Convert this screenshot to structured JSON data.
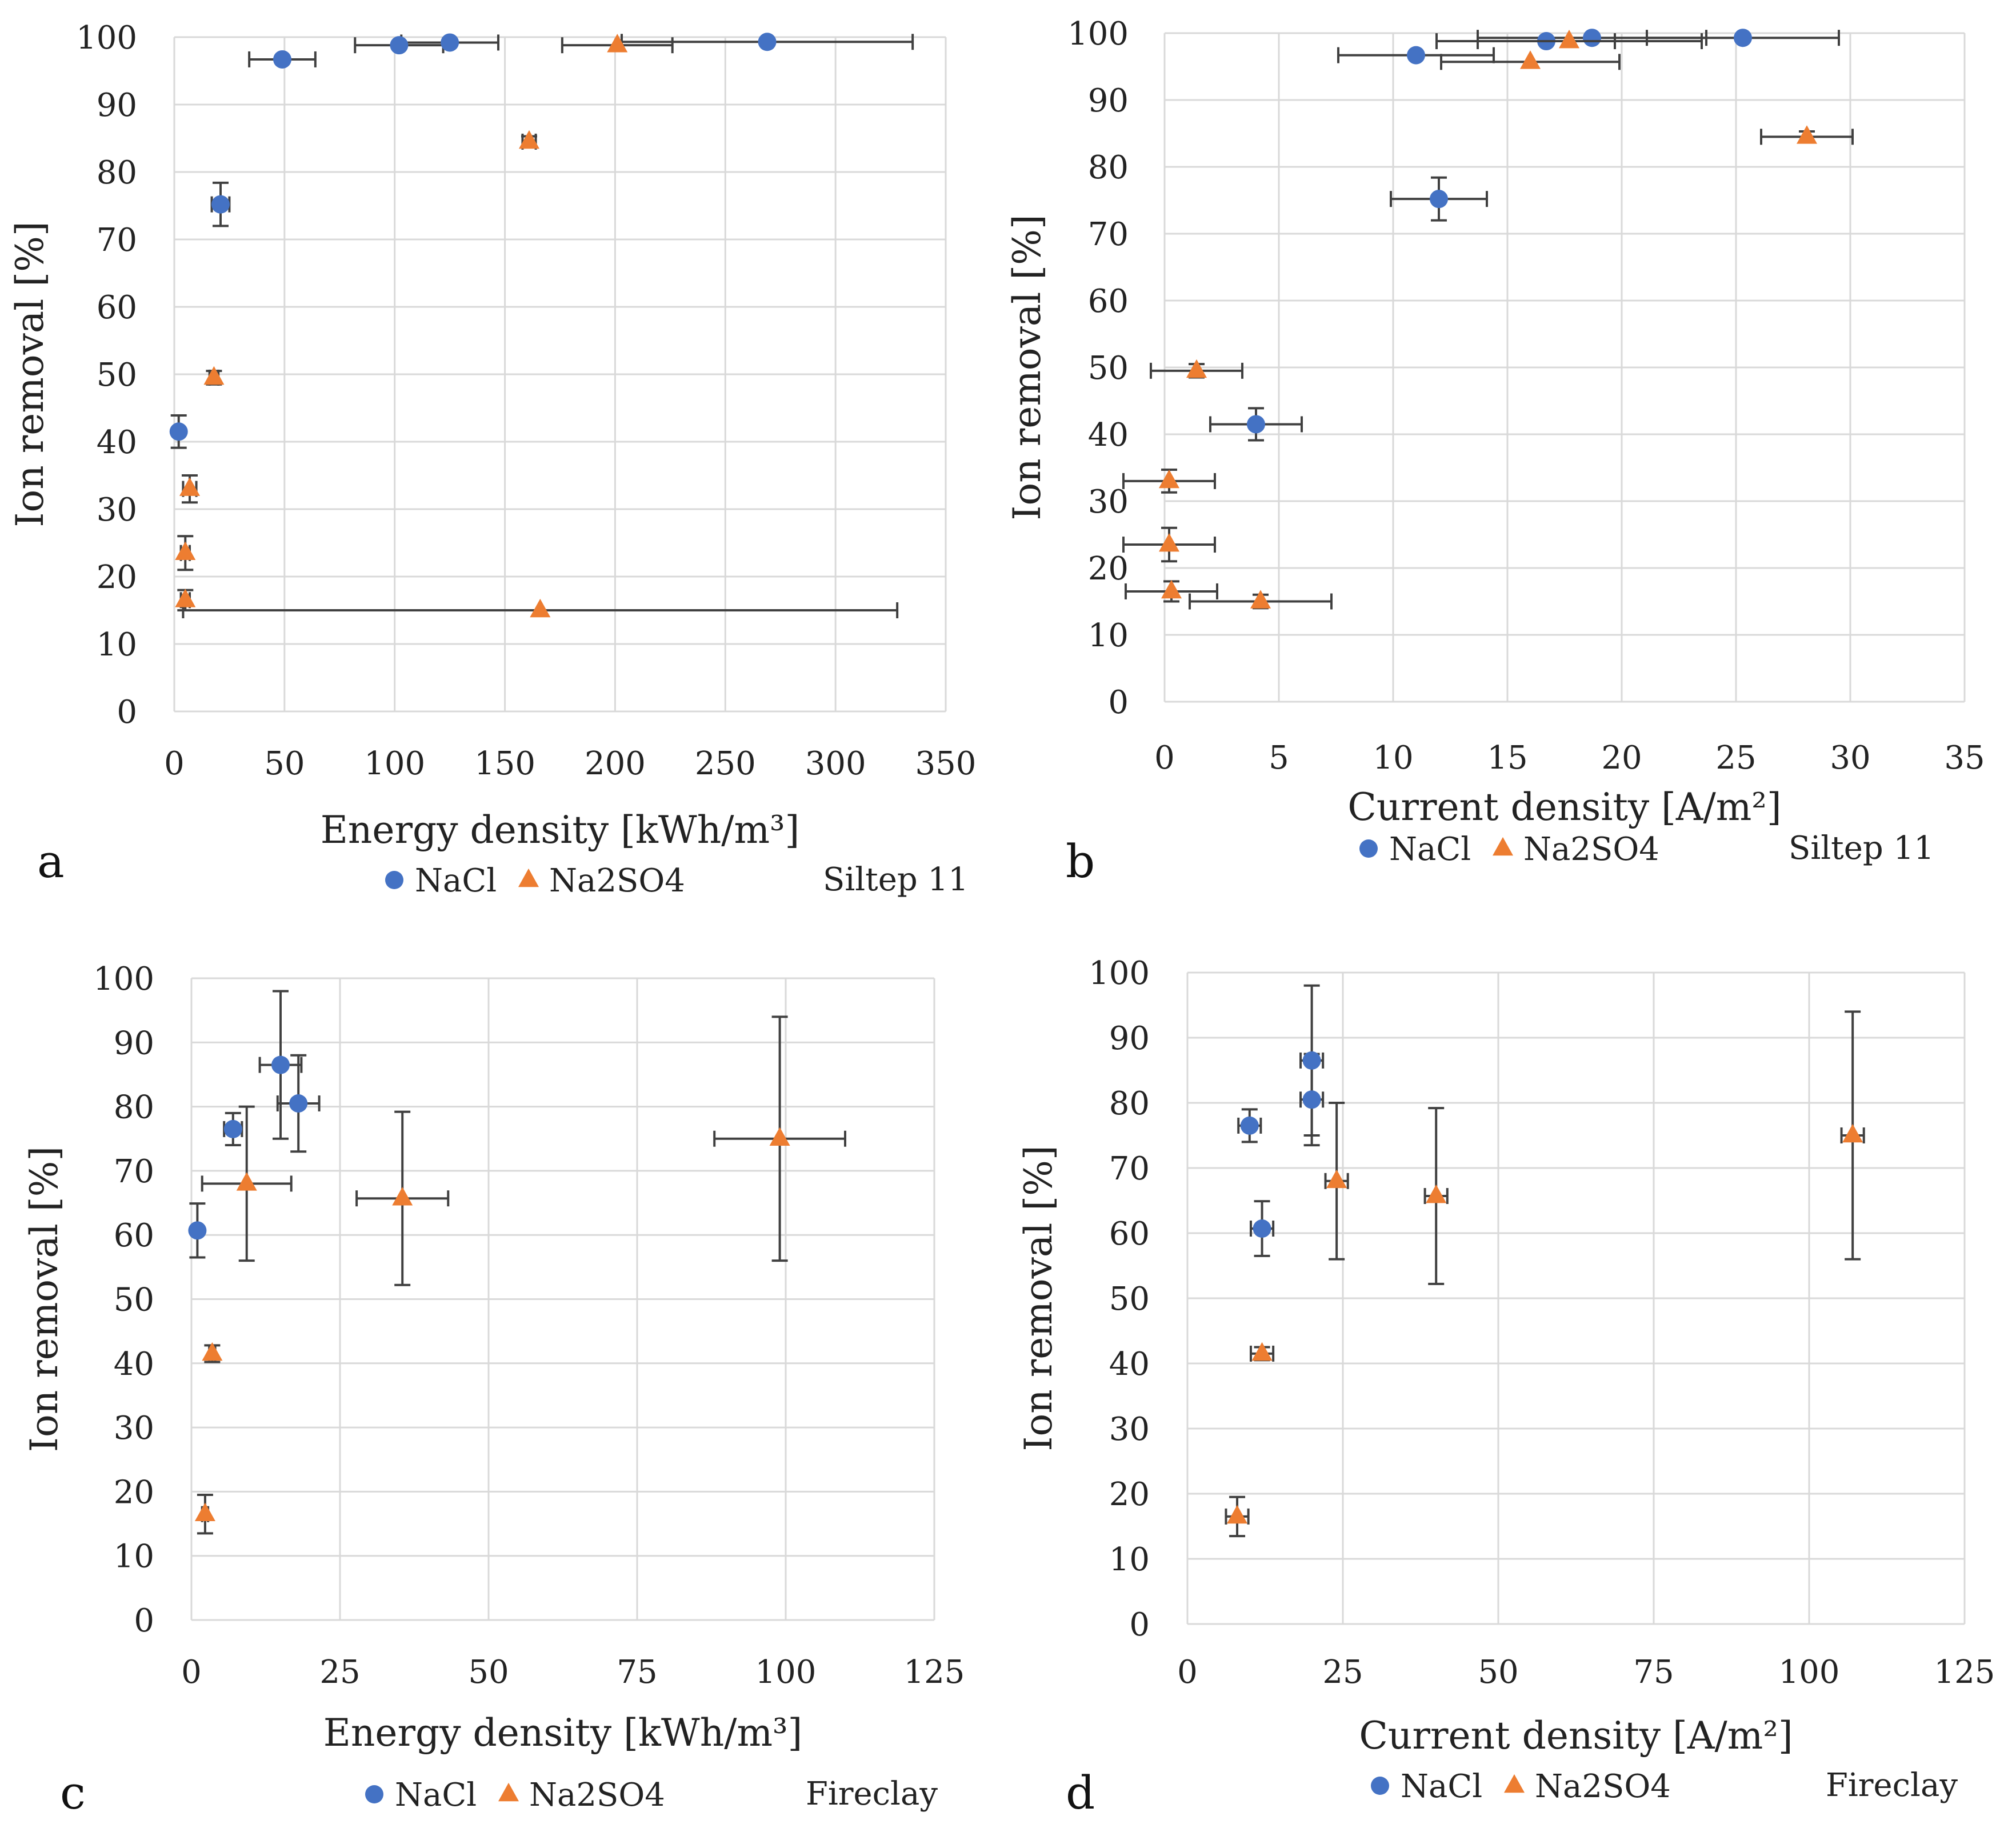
{
  "figure": {
    "marker_colors": {
      "nacl": "#4472C4",
      "na2so4": "#ED7D31"
    },
    "errorbar_color": "#404040",
    "grid_color": "#D9D9D9"
  },
  "chart_data": [
    {
      "panel": "a",
      "type": "scatter",
      "xlabel": "Energy density [kWh/m³]",
      "ylabel": "Ion removal [%]",
      "xlim": [
        0,
        350
      ],
      "xticks": [
        0,
        50,
        100,
        150,
        200,
        250,
        300,
        350
      ],
      "ylim": [
        0,
        100
      ],
      "yticks": [
        0,
        10,
        20,
        30,
        40,
        50,
        60,
        70,
        80,
        90,
        100
      ],
      "grid": true,
      "legend": [
        "NaCl",
        "Na2SO4"
      ],
      "note": "Siltep 11",
      "series": [
        {
          "name": "NaCl",
          "marker": "circle",
          "points": [
            {
              "x": 49,
              "y": 96.7,
              "xerr": 15,
              "yerr": 0
            },
            {
              "x": 102,
              "y": 98.8,
              "xerr": 20,
              "yerr": 0
            },
            {
              "x": 125,
              "y": 99.2,
              "xerr": 22,
              "yerr": 0
            },
            {
              "x": 269,
              "y": 99.3,
              "xerr": 66,
              "yerr": 0
            },
            {
              "x": 21,
              "y": 75.2,
              "xerr": 4,
              "yerr": 3.2
            },
            {
              "x": 2,
              "y": 41.5,
              "xerr": 0,
              "yerr": 2.4
            }
          ]
        },
        {
          "name": "Na2SO4",
          "marker": "triangle",
          "points": [
            {
              "x": 201,
              "y": 98.8,
              "xerr": 25,
              "yerr": 0
            },
            {
              "x": 161,
              "y": 84.5,
              "xerr": 3,
              "yerr": 0.8
            },
            {
              "x": 18,
              "y": 49.5,
              "xerr": 2,
              "yerr": 1
            },
            {
              "x": 7,
              "y": 33,
              "xerr": 3,
              "yerr": 2
            },
            {
              "x": 5,
              "y": 23.5,
              "xerr": 2,
              "yerr": 2.5
            },
            {
              "x": 5,
              "y": 16.5,
              "xerr": 2,
              "yerr": 1.5
            },
            {
              "x": 166,
              "y": 15,
              "xerr": 162,
              "yerr": 0
            }
          ]
        }
      ]
    },
    {
      "panel": "b",
      "type": "scatter",
      "xlabel": "Current density [A/m²]",
      "ylabel": "Ion removal [%]",
      "xlim": [
        0,
        35
      ],
      "xticks": [
        0,
        5,
        10,
        15,
        20,
        25,
        30,
        35
      ],
      "ylim": [
        0,
        100
      ],
      "yticks": [
        0,
        10,
        20,
        30,
        40,
        50,
        60,
        70,
        80,
        90,
        100
      ],
      "grid": true,
      "legend": [
        "NaCl",
        "Na2SO4"
      ],
      "note": "Siltep 11",
      "series": [
        {
          "name": "NaCl",
          "marker": "circle",
          "points": [
            {
              "x": 11,
              "y": 96.7,
              "xerr": 3.4,
              "yerr": 0
            },
            {
              "x": 16.7,
              "y": 98.8,
              "xerr": 3,
              "yerr": 0
            },
            {
              "x": 18.7,
              "y": 99.3,
              "xerr": 5,
              "yerr": 0
            },
            {
              "x": 25.3,
              "y": 99.3,
              "xerr": 4.2,
              "yerr": 0
            },
            {
              "x": 12,
              "y": 75.2,
              "xerr": 2.1,
              "yerr": 3.2
            },
            {
              "x": 4,
              "y": 41.5,
              "xerr": 2,
              "yerr": 2.4
            }
          ]
        },
        {
          "name": "Na2SO4",
          "marker": "triangle",
          "points": [
            {
              "x": 17.7,
              "y": 98.8,
              "xerr": 5.8,
              "yerr": 0
            },
            {
              "x": 16,
              "y": 95.7,
              "xerr": 3.9,
              "yerr": 0
            },
            {
              "x": 28.1,
              "y": 84.5,
              "xerr": 2,
              "yerr": 0.8
            },
            {
              "x": 1.4,
              "y": 49.5,
              "xerr": 2,
              "yerr": 1
            },
            {
              "x": 0.2,
              "y": 33,
              "xerr": 2,
              "yerr": 1.7
            },
            {
              "x": 0.2,
              "y": 23.5,
              "xerr": 2,
              "yerr": 2.5
            },
            {
              "x": 0.3,
              "y": 16.5,
              "xerr": 2,
              "yerr": 1.5
            },
            {
              "x": 4.2,
              "y": 15,
              "xerr": 3.1,
              "yerr": 1
            }
          ]
        }
      ]
    },
    {
      "panel": "c",
      "type": "scatter",
      "xlabel": "Energy density [kWh/m³]",
      "ylabel": "Ion removal [%]",
      "xlim": [
        0,
        125
      ],
      "xticks": [
        0,
        25,
        50,
        75,
        100,
        125
      ],
      "ylim": [
        0,
        100
      ],
      "yticks": [
        0,
        10,
        20,
        30,
        40,
        50,
        60,
        70,
        80,
        90,
        100
      ],
      "grid": true,
      "legend": [
        "NaCl",
        "Na2SO4"
      ],
      "note": "Fireclay",
      "series": [
        {
          "name": "NaCl",
          "marker": "circle",
          "points": [
            {
              "x": 15,
              "y": 86.5,
              "xerr": 3.5,
              "yerr": 11.5
            },
            {
              "x": 18,
              "y": 80.5,
              "xerr": 3.5,
              "yerr": 7.5
            },
            {
              "x": 7,
              "y": 76.5,
              "xerr": 1.5,
              "yerr": 2.5
            },
            {
              "x": 1,
              "y": 60.7,
              "xerr": 0,
              "yerr": 4.2
            }
          ]
        },
        {
          "name": "Na2SO4",
          "marker": "triangle",
          "points": [
            {
              "x": 99,
              "y": 75,
              "xerr": 11,
              "yerr": 19
            },
            {
              "x": 35.5,
              "y": 65.7,
              "xerr": 7.7,
              "yerr": 13.5
            },
            {
              "x": 9.3,
              "y": 68,
              "xerr": 7.5,
              "yerr": 12
            },
            {
              "x": 3.5,
              "y": 41.5,
              "xerr": 0.5,
              "yerr": 1.3
            },
            {
              "x": 2.3,
              "y": 16.5,
              "xerr": 0.5,
              "yerr": 3
            }
          ]
        }
      ]
    },
    {
      "panel": "d",
      "type": "scatter",
      "xlabel": "Current density [A/m²]",
      "ylabel": "Ion removal [%]",
      "xlim": [
        0,
        125
      ],
      "xticks": [
        0,
        25,
        50,
        75,
        100,
        125
      ],
      "ylim": [
        0,
        100
      ],
      "yticks": [
        0,
        10,
        20,
        30,
        40,
        50,
        60,
        70,
        80,
        90,
        100
      ],
      "grid": true,
      "legend": [
        "NaCl",
        "Na2SO4"
      ],
      "note": "Fireclay",
      "series": [
        {
          "name": "NaCl",
          "marker": "circle",
          "points": [
            {
              "x": 20,
              "y": 86.5,
              "xerr": 1.8,
              "yerr": 11.5
            },
            {
              "x": 20,
              "y": 80.5,
              "xerr": 1.8,
              "yerr": 7
            },
            {
              "x": 10,
              "y": 76.5,
              "xerr": 1.8,
              "yerr": 2.5
            },
            {
              "x": 12,
              "y": 60.7,
              "xerr": 1.8,
              "yerr": 4.2
            }
          ]
        },
        {
          "name": "Na2SO4",
          "marker": "triangle",
          "points": [
            {
              "x": 107,
              "y": 75,
              "xerr": 1.8,
              "yerr": 19
            },
            {
              "x": 40,
              "y": 65.7,
              "xerr": 1.8,
              "yerr": 13.5
            },
            {
              "x": 24,
              "y": 68,
              "xerr": 1.8,
              "yerr": 12
            },
            {
              "x": 12,
              "y": 41.5,
              "xerr": 1.8,
              "yerr": 1
            },
            {
              "x": 8,
              "y": 16.5,
              "xerr": 1.8,
              "yerr": 3
            }
          ]
        }
      ]
    }
  ]
}
